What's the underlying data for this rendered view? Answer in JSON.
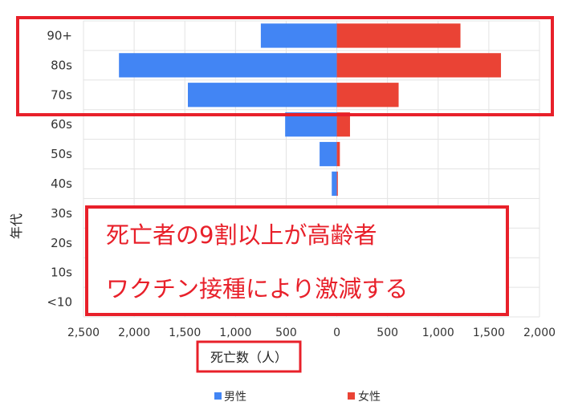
{
  "chart_data": {
    "type": "bar",
    "orientation": "horizontal-diverging",
    "categories": [
      "90+",
      "80s",
      "70s",
      "60s",
      "50s",
      "40s",
      "30s",
      "20s",
      "10s",
      "<10"
    ],
    "series": [
      {
        "name": "男性",
        "color": "#4285f4",
        "values": [
          750,
          2150,
          1470,
          510,
          170,
          50,
          0,
          0,
          0,
          0
        ]
      },
      {
        "name": "女性",
        "color": "#ea4335",
        "values": [
          1220,
          1620,
          610,
          130,
          30,
          10,
          0,
          0,
          0,
          0
        ]
      }
    ],
    "xlabel": "死亡数（人）",
    "ylabel": "年代",
    "xlim": [
      -2500,
      2000
    ],
    "x_ticks": [
      -2500,
      -2000,
      -1500,
      -1000,
      -500,
      0,
      500,
      1000,
      1500,
      2000
    ],
    "x_tick_labels": [
      "2,500",
      "2,000",
      "1,500",
      "1,000",
      "500",
      "0",
      "500",
      "1,000",
      "1,500",
      "2,000"
    ],
    "grid": true,
    "legend": "bottom",
    "annotations": [
      {
        "text": "死亡者の9割以上が高齢者"
      },
      {
        "text": "ワクチン接種により激減する"
      }
    ],
    "highlight_color": "#e8202a"
  }
}
